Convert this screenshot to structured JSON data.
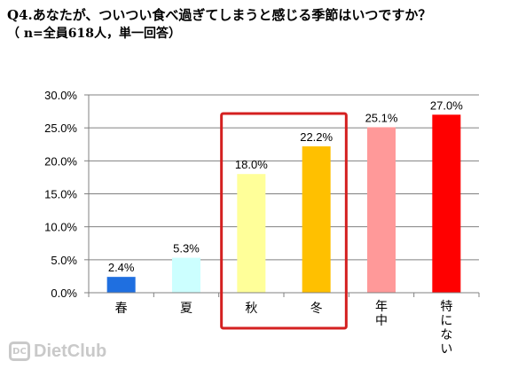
{
  "header": {
    "title": "Q4.あなたが、ついつい食べ過ぎてしまうと感じる季節はいつですか？",
    "subtitle": "（ n=全員618人，単一回答）"
  },
  "watermark": {
    "brand": "DietClub",
    "mark": "DC"
  },
  "colors": {
    "highlight_box": "#d42020",
    "axis": "#808080",
    "grid": "#808080"
  },
  "chart_data": {
    "type": "bar",
    "title": "",
    "xlabel": "",
    "ylabel": "",
    "categories": [
      "春",
      "夏",
      "秋",
      "冬",
      "年中",
      "特にない"
    ],
    "values": [
      2.4,
      5.3,
      18.0,
      22.2,
      25.1,
      27.0
    ],
    "value_labels": [
      "2.4%",
      "5.3%",
      "18.0%",
      "22.2%",
      "25.1%",
      "27.0%"
    ],
    "bar_colors": [
      "#1f6fe0",
      "#ccffff",
      "#ffff99",
      "#ffc000",
      "#ff9999",
      "#ff0000"
    ],
    "ylim": [
      0,
      30
    ],
    "yticks": [
      0,
      5,
      10,
      15,
      20,
      25,
      30
    ],
    "ytick_labels": [
      "0.0%",
      "5.0%",
      "10.0%",
      "15.0%",
      "20.0%",
      "25.0%",
      "30.0%"
    ],
    "grid": true,
    "legend": "none",
    "highlighted_categories": [
      "秋",
      "冬"
    ]
  }
}
